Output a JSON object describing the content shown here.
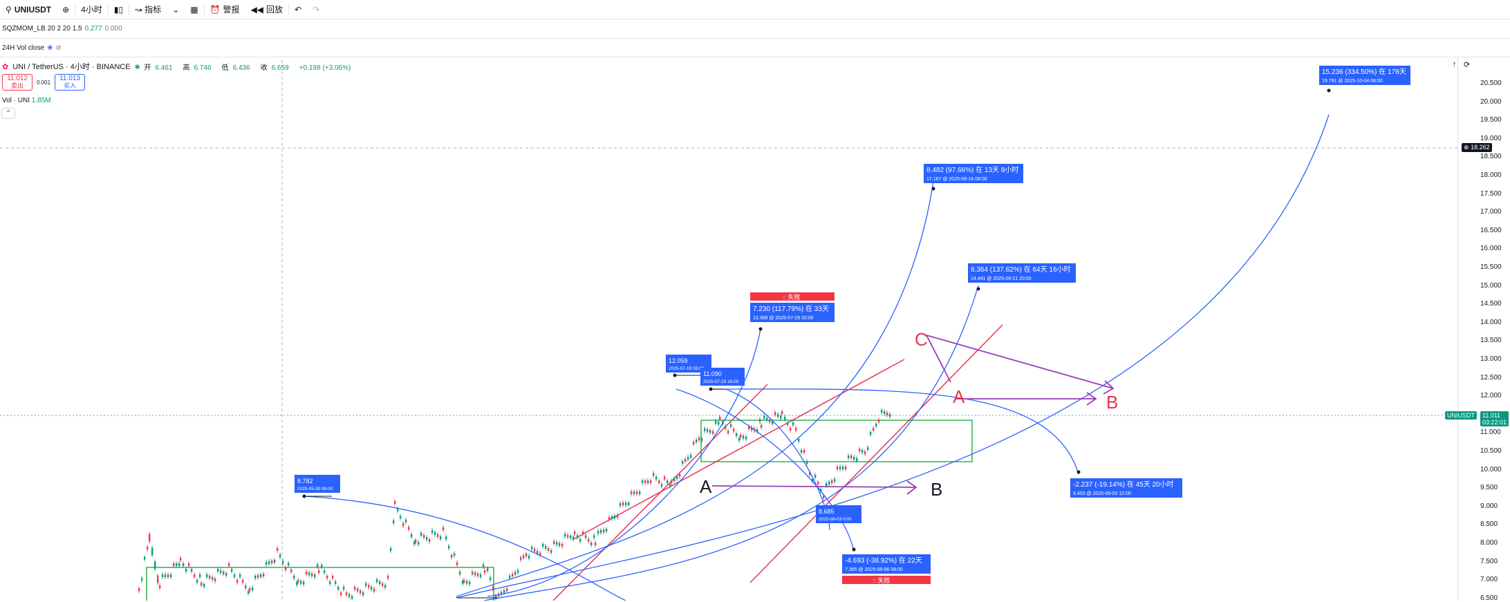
{
  "toolbar": {
    "symbol": "UNIUSDT",
    "interval": "4小时",
    "indicators": "指标",
    "alert": "警报",
    "replay": "回放"
  },
  "indicator1": {
    "name": "SQZMOM_LB 20 2 20 1.5",
    "v1": "0.277",
    "v2": "0.000"
  },
  "indicator2": {
    "name": "24H Vol close"
  },
  "header": {
    "symbol_line": "UNI / TetherUS · 4小时 · BINANCE",
    "open_label": "开",
    "open": "6.461",
    "high_label": "高",
    "high": "6.746",
    "low_label": "低",
    "low": "6.436",
    "close_label": "收",
    "close": "6.659",
    "change": "+0.198 (+3.06%)"
  },
  "trade": {
    "sell_price": "11.012",
    "sell_label": "卖出",
    "spread": "0.001",
    "buy_price": "11.013",
    "buy_label": "买入"
  },
  "volume": {
    "label": "Vol · UNI",
    "value": "1.85M"
  },
  "axis": {
    "ticks": [
      "20.500",
      "20.000",
      "19.500",
      "19.000",
      "18.500",
      "18.000",
      "17.500",
      "17.000",
      "16.500",
      "16.000",
      "15.500",
      "15.000",
      "14.500",
      "14.000",
      "13.500",
      "13.000",
      "12.500",
      "12.000",
      "11.500",
      "11.000",
      "10.500",
      "10.000",
      "9.500",
      "9.000",
      "8.500",
      "8.000",
      "7.500",
      "7.000",
      "6.500"
    ],
    "crosshair_price": "18.262",
    "last_symbol": "UNIUSDT",
    "last_price": "11.011",
    "countdown": "03:22:01"
  },
  "annotations": {
    "a1": {
      "line1": "15.236 (334.50%) 在 178天",
      "line2": "19.791 @ 2025-10-04  08:00"
    },
    "a2": {
      "line1": "8.482 (97.66%) 在 13天 8小时",
      "line2": "17.167 @ 2025-08-16  08:00"
    },
    "a3": {
      "line1": "8.364 (137.62%) 在 64天 16小时",
      "line2": "14.441 @ 2025-08-21  20:00"
    },
    "a4": {
      "fail": ":: 失败",
      "line1": "7.230 (117.79%) 在 33天",
      "line2": "13.368 @ 2025-07-25  20:00"
    },
    "a5": {
      "line1": "12.059",
      "line2": "2025-07-19 08:00"
    },
    "a6": {
      "line1": "11.090",
      "line2": "2025-07-19 16:00"
    },
    "a7": {
      "line1": "-2.237 (-19.14%) 在 45天 20小时",
      "line2": "9.453 @ 2025-09-03  12:00"
    },
    "a8": {
      "line1": "8.782",
      "line2": "2025-05-30 08:00"
    },
    "a9": {
      "line1": "8.685",
      "line2": "2025-08-03 0:00"
    },
    "a10": {
      "line1": "-4.693 (-38.92%) 在 22天",
      "line2": "7.365 @ 2025-08-06  08:00",
      "fail": ":: 失败"
    },
    "letters": {
      "A1": "A",
      "B1": "B",
      "A2": "A",
      "B2": "B",
      "C": "C"
    }
  },
  "colors": {
    "up": "#089981",
    "down": "#f23645",
    "blue": "#2962ff",
    "annotation": "#2962ff",
    "purple": "#9c3bb8",
    "red": "#e8344e"
  }
}
